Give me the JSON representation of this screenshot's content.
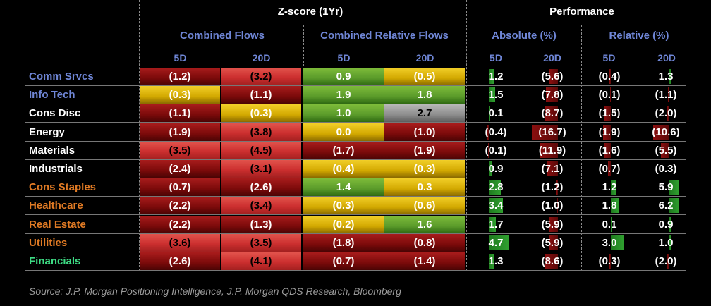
{
  "header": {
    "zscore_title": "Z-score (1Yr)",
    "performance_title": "Performance",
    "groups": {
      "combined_flows": "Combined Flows",
      "combined_relative_flows": "Combined Relative Flows",
      "absolute": "Absolute (%)",
      "relative": "Relative (%)"
    },
    "subcolumns": [
      "5D",
      "20D",
      "5D",
      "20D",
      "5D",
      "20D",
      "5D",
      "20D"
    ]
  },
  "colors": {
    "sector_blue": "#6f86d6",
    "sector_white": "#ffffff",
    "sector_orange": "#e07a24",
    "sector_green": "#3ddc84",
    "heat_red": "#cc2f2f",
    "heat_dark_red": "#7a0a0a",
    "heat_yellow": "#d2a800",
    "heat_green": "#5a9a2a",
    "bar_green": "#2f9f2f",
    "bar_red": "#8a0f0f"
  },
  "chart_data": {
    "type": "table",
    "columns": [
      "Combined Flows 5D",
      "Combined Flows 20D",
      "Combined Relative Flows 5D",
      "Combined Relative Flows 20D",
      "Absolute (%) 5D",
      "Absolute (%) 20D",
      "Relative (%) 5D",
      "Relative (%) 20D"
    ],
    "rows": [
      {
        "sector": "Comm Srvcs",
        "sector_color": "blue",
        "zscore": [
          "(1.2)",
          "(3.2)",
          "0.9",
          "(0.5)"
        ],
        "zscore_values": [
          -1.2,
          -3.2,
          0.9,
          -0.5
        ],
        "performance": [
          "1.2",
          "(5.6)",
          "(0.4)",
          "1.3"
        ],
        "performance_values": [
          1.2,
          -5.6,
          -0.4,
          1.3
        ]
      },
      {
        "sector": "Info Tech",
        "sector_color": "blue",
        "zscore": [
          "(0.3)",
          "(1.1)",
          "1.9",
          "1.8"
        ],
        "zscore_values": [
          -0.3,
          -1.1,
          1.9,
          1.8
        ],
        "performance": [
          "1.5",
          "(7.8)",
          "(0.1)",
          "(1.1)"
        ],
        "performance_values": [
          1.5,
          -7.8,
          -0.1,
          -1.1
        ]
      },
      {
        "sector": "Cons Disc",
        "sector_color": "white",
        "zscore": [
          "(1.1)",
          "(0.3)",
          "1.0",
          "2.7"
        ],
        "zscore_values": [
          -1.1,
          -0.3,
          1.0,
          2.7
        ],
        "performance": [
          "0.1",
          "(8.7)",
          "(1.5)",
          "(2.0)"
        ],
        "performance_values": [
          0.1,
          -8.7,
          -1.5,
          -2.0
        ]
      },
      {
        "sector": "Energy",
        "sector_color": "white",
        "zscore": [
          "(1.9)",
          "(3.8)",
          "0.0",
          "(1.0)"
        ],
        "zscore_values": [
          -1.9,
          -3.8,
          0.0,
          -1.0
        ],
        "performance": [
          "(0.4)",
          "(16.7)",
          "(1.9)",
          "(10.6)"
        ],
        "performance_values": [
          -0.4,
          -16.7,
          -1.9,
          -10.6
        ]
      },
      {
        "sector": "Materials",
        "sector_color": "white",
        "zscore": [
          "(3.5)",
          "(4.5)",
          "(1.7)",
          "(1.9)"
        ],
        "zscore_values": [
          -3.5,
          -4.5,
          -1.7,
          -1.9
        ],
        "performance": [
          "(0.1)",
          "(11.9)",
          "(1.6)",
          "(5.5)"
        ],
        "performance_values": [
          -0.1,
          -11.9,
          -1.6,
          -5.5
        ]
      },
      {
        "sector": "Industrials",
        "sector_color": "white",
        "zscore": [
          "(2.4)",
          "(3.1)",
          "(0.4)",
          "(0.3)"
        ],
        "zscore_values": [
          -2.4,
          -3.1,
          -0.4,
          -0.3
        ],
        "performance": [
          "0.9",
          "(7.1)",
          "(0.7)",
          "(0.3)"
        ],
        "performance_values": [
          0.9,
          -7.1,
          -0.7,
          -0.3
        ]
      },
      {
        "sector": "Cons Staples",
        "sector_color": "orange",
        "zscore": [
          "(0.7)",
          "(2.6)",
          "1.4",
          "0.3"
        ],
        "zscore_values": [
          -0.7,
          -2.6,
          1.4,
          0.3
        ],
        "performance": [
          "2.8",
          "(1.2)",
          "1.2",
          "5.9"
        ],
        "performance_values": [
          2.8,
          -1.2,
          1.2,
          5.9
        ]
      },
      {
        "sector": "Healthcare",
        "sector_color": "orange",
        "zscore": [
          "(2.2)",
          "(3.4)",
          "(0.3)",
          "(0.6)"
        ],
        "zscore_values": [
          -2.2,
          -3.4,
          -0.3,
          -0.6
        ],
        "performance": [
          "3.4",
          "(1.0)",
          "1.8",
          "6.2"
        ],
        "performance_values": [
          3.4,
          -1.0,
          1.8,
          6.2
        ]
      },
      {
        "sector": "Real Estate",
        "sector_color": "orange",
        "zscore": [
          "(2.2)",
          "(1.3)",
          "(0.2)",
          "1.6"
        ],
        "zscore_values": [
          -2.2,
          -1.3,
          -0.2,
          1.6
        ],
        "performance": [
          "1.7",
          "(5.9)",
          "0.1",
          "0.9"
        ],
        "performance_values": [
          1.7,
          -5.9,
          0.1,
          0.9
        ]
      },
      {
        "sector": "Utilities",
        "sector_color": "orange",
        "zscore": [
          "(3.6)",
          "(3.5)",
          "(1.8)",
          "(0.8)"
        ],
        "zscore_values": [
          -3.6,
          -3.5,
          -1.8,
          -0.8
        ],
        "performance": [
          "4.7",
          "(5.9)",
          "3.0",
          "1.0"
        ],
        "performance_values": [
          4.7,
          -5.9,
          3.0,
          1.0
        ]
      },
      {
        "sector": "Financials",
        "sector_color": "green",
        "zscore": [
          "(2.6)",
          "(4.1)",
          "(0.7)",
          "(1.4)"
        ],
        "zscore_values": [
          -2.6,
          -4.1,
          -0.7,
          -1.4
        ],
        "performance": [
          "1.3",
          "(8.6)",
          "(0.3)",
          "(2.0)"
        ],
        "performance_values": [
          1.3,
          -8.6,
          -0.3,
          -2.0
        ]
      }
    ]
  },
  "source": "Source: J.P. Morgan Positioning Intelligence, J.P. Morgan QDS Research, Bloomberg"
}
